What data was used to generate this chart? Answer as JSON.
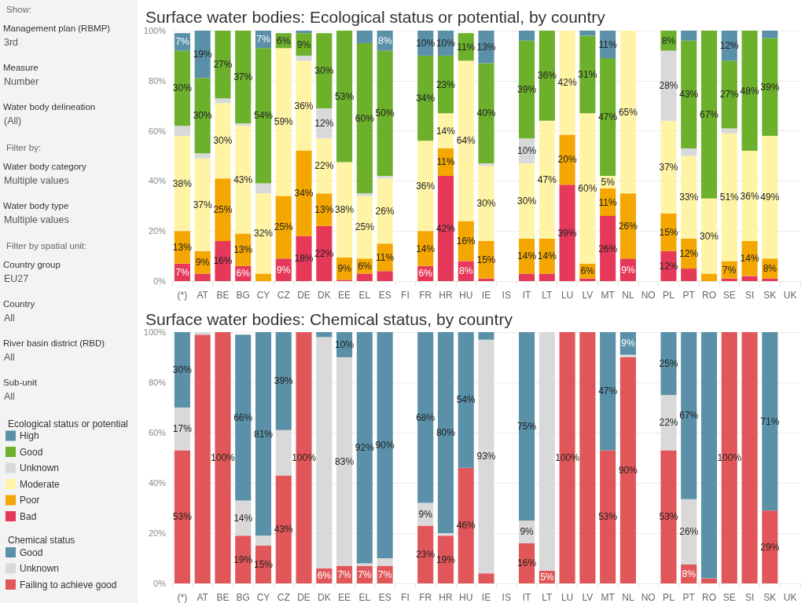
{
  "chart_data": [
    {
      "type": "other",
      "annotations": [
        "Show:",
        "Management plan (RBMP)",
        "3rd",
        "Measure",
        "Number",
        "Water body delineation",
        "(All)",
        "Filter by:",
        "Water body category",
        "Multiple values",
        "Water body type",
        "Multiple values",
        "Filter by spatial unit:",
        "Country group",
        "EU27",
        "Country",
        "All",
        "River basin district (RBD)",
        "All",
        "Sub-unit",
        "All"
      ]
    },
    {
      "type": "bar",
      "title": "Surface water bodies: Ecological status or potential, by country",
      "legend_title": "Ecological status or potential",
      "stacked": true,
      "grid": "y",
      "legend": "bottom left",
      "categories": [
        "(*)",
        "AT",
        "BE",
        "BG",
        "CY",
        "CZ",
        "DE",
        "DK",
        "EE",
        "EL",
        "ES",
        "FI",
        "FR",
        "HR",
        "HU",
        "IE",
        "IS",
        "IT",
        "LT",
        "LU",
        "LV",
        "MT",
        "NL",
        "NO",
        "PL",
        "PT",
        "RO",
        "SE",
        "SI",
        "SK",
        "UK"
      ],
      "ylim": [
        0,
        100
      ],
      "yticks": [
        {
          "value": 0,
          "label": "0%"
        },
        {
          "value": 20,
          "label": "20%"
        },
        {
          "value": 40,
          "label": "40%"
        },
        {
          "value": 60,
          "label": "60%"
        },
        {
          "value": 80,
          "label": "80%"
        },
        {
          "value": 100,
          "label": "100%"
        }
      ],
      "series": [
        {
          "name": "Bad",
          "color": "#e6395a",
          "values": [
            7,
            3,
            16,
            6,
            0,
            9,
            18,
            22,
            0.5,
            3,
            4,
            null,
            6,
            42,
            8,
            1,
            null,
            3,
            3,
            38.5,
            1,
            26,
            9,
            null,
            12,
            5,
            0,
            1,
            2,
            1,
            null
          ],
          "value_labels": [
            "7%",
            null,
            "16%",
            "6%",
            null,
            "9%",
            "18%",
            "22%",
            null,
            null,
            null,
            null,
            "6%",
            "42%",
            "8%",
            null,
            null,
            null,
            null,
            "39%",
            null,
            "26%",
            "9%",
            null,
            "12%",
            null,
            null,
            null,
            null,
            null,
            null
          ]
        },
        {
          "name": "Poor",
          "color": "#f4a700",
          "values": [
            13,
            9,
            25,
            13,
            3,
            25,
            34,
            13,
            9,
            6,
            11,
            null,
            14,
            11,
            16,
            15,
            null,
            14,
            14,
            20,
            6,
            11,
            26,
            null,
            15,
            12,
            3,
            7,
            14,
            8,
            null
          ],
          "value_labels": [
            "13%",
            "9%",
            "25%",
            "13%",
            null,
            "25%",
            "34%",
            "13%",
            "9%",
            "6%",
            "11%",
            null,
            "14%",
            "11%",
            "16%",
            "15%",
            null,
            "14%",
            "14%",
            "20%",
            "6%",
            "11%",
            "26%",
            null,
            "15%",
            "12%",
            null,
            "7%",
            "14%",
            "8%",
            null
          ]
        },
        {
          "name": "Moderate",
          "color": "#fff4a6",
          "values": [
            38,
            37,
            30,
            43,
            32,
            59,
            36,
            22,
            38,
            25,
            26,
            null,
            36,
            14,
            64,
            30,
            null,
            30,
            47,
            41.5,
            60,
            5,
            65,
            null,
            37,
            33,
            30,
            51,
            36,
            49,
            null
          ],
          "value_labels": [
            "38%",
            "37%",
            "30%",
            "43%",
            "32%",
            "59%",
            "36%",
            "22%",
            "38%",
            "25%",
            "26%",
            null,
            "36%",
            "14%",
            "64%",
            "30%",
            null,
            "30%",
            "47%",
            "42%",
            "60%",
            "5%",
            "65%",
            null,
            "37%",
            "33%",
            "30%",
            "51%",
            "36%",
            "49%",
            null
          ]
        },
        {
          "name": "Unknown",
          "color": "#d9d9d9",
          "values": [
            4,
            2,
            2,
            1,
            4,
            0,
            2,
            12,
            0,
            1,
            1,
            null,
            0,
            0,
            0,
            1,
            null,
            10,
            0,
            0,
            0,
            0,
            0,
            null,
            28,
            3,
            0,
            2,
            0,
            0,
            null
          ],
          "value_labels": [
            null,
            null,
            null,
            null,
            null,
            null,
            null,
            "12%",
            null,
            null,
            null,
            null,
            null,
            null,
            null,
            null,
            null,
            "10%",
            null,
            null,
            null,
            null,
            null,
            null,
            "28%",
            null,
            null,
            null,
            null,
            null,
            null
          ]
        },
        {
          "name": "Good",
          "color": "#6cb02c",
          "values": [
            30,
            30,
            27,
            37,
            54,
            6,
            9,
            30,
            52.5,
            60,
            50,
            null,
            34,
            23,
            11,
            40,
            null,
            39,
            36,
            0,
            31,
            47,
            0,
            null,
            8,
            43,
            67,
            27,
            48,
            39,
            null
          ],
          "value_labels": [
            "30%",
            "30%",
            "27%",
            "37%",
            "54%",
            "6%",
            "9%",
            "30%",
            "53%",
            "60%",
            "50%",
            null,
            "34%",
            "23%",
            "11%",
            "40%",
            null,
            "39%",
            "36%",
            null,
            "31%",
            "47%",
            null,
            null,
            "8%",
            "43%",
            "67%",
            "27%",
            "48%",
            "39%",
            null
          ]
        },
        {
          "name": "High",
          "color": "#5a91a8",
          "values": [
            7,
            19,
            0,
            0,
            7,
            0,
            1,
            0,
            0,
            5,
            8,
            null,
            10,
            10,
            0,
            13,
            null,
            4,
            0,
            0,
            2,
            11,
            0,
            null,
            0,
            4,
            0,
            12,
            0,
            3,
            null
          ],
          "value_labels": [
            "7%",
            "19%",
            null,
            null,
            "7%",
            null,
            null,
            null,
            null,
            null,
            "8%",
            null,
            "10%",
            "10%",
            null,
            "13%",
            null,
            null,
            null,
            null,
            null,
            "11%",
            null,
            null,
            null,
            null,
            null,
            "12%",
            null,
            null,
            null
          ]
        }
      ]
    },
    {
      "type": "bar",
      "title": "Surface water bodies: Chemical status, by country",
      "legend_title": "Chemical status",
      "stacked": true,
      "grid": "y",
      "legend": "bottom left",
      "categories": [
        "(*)",
        "AT",
        "BE",
        "BG",
        "CY",
        "CZ",
        "DE",
        "DK",
        "EE",
        "EL",
        "ES",
        "FI",
        "FR",
        "HR",
        "HU",
        "IE",
        "IS",
        "IT",
        "LT",
        "LU",
        "LV",
        "MT",
        "NL",
        "NO",
        "PL",
        "PT",
        "RO",
        "SE",
        "SI",
        "SK",
        "UK"
      ],
      "ylim": [
        0,
        100
      ],
      "yticks": [
        {
          "value": 0,
          "label": "0%"
        },
        {
          "value": 20,
          "label": "20%"
        },
        {
          "value": 40,
          "label": "40%"
        },
        {
          "value": 60,
          "label": "60%"
        },
        {
          "value": 80,
          "label": "80%"
        },
        {
          "value": 100,
          "label": "100%"
        }
      ],
      "series": [
        {
          "name": "Failing to achieve good",
          "color": "#e15759",
          "values": [
            53,
            99,
            100,
            19,
            15,
            43,
            100,
            6,
            7,
            7,
            7,
            null,
            23,
            19,
            46,
            4,
            null,
            16,
            5,
            100,
            100,
            53,
            90,
            null,
            53,
            7.5,
            2,
            100,
            100,
            29,
            null
          ],
          "value_labels": [
            "53%",
            null,
            "100%",
            "19%",
            "15%",
            "43%",
            "100%",
            "6%",
            "7%",
            "7%",
            "7%",
            null,
            "23%",
            "19%",
            "46%",
            null,
            null,
            "16%",
            "5%",
            "100%",
            null,
            "53%",
            "90%",
            null,
            "53%",
            "8%",
            null,
            "100%",
            null,
            "29%",
            null
          ]
        },
        {
          "name": "Unknown",
          "color": "#d9d9d9",
          "values": [
            17,
            1,
            0,
            14,
            4,
            18,
            0,
            92,
            83,
            1,
            3,
            null,
            9,
            1,
            0,
            93,
            null,
            9,
            95,
            0,
            0,
            0,
            1,
            null,
            22,
            26,
            0,
            0,
            0,
            0,
            null
          ],
          "value_labels": [
            "17%",
            null,
            null,
            "14%",
            null,
            null,
            null,
            null,
            "83%",
            null,
            null,
            null,
            "9%",
            null,
            null,
            "93%",
            null,
            "9%",
            null,
            null,
            null,
            null,
            null,
            null,
            "22%",
            "26%",
            null,
            null,
            null,
            null,
            null
          ]
        },
        {
          "name": "Good",
          "color": "#5a91a8",
          "values": [
            30,
            0,
            0,
            66,
            81,
            39,
            0,
            2,
            10,
            92,
            90,
            null,
            68,
            80,
            54,
            3,
            null,
            75,
            0,
            0,
            0,
            47,
            9,
            null,
            25,
            66.5,
            98,
            0,
            0,
            71,
            null
          ],
          "value_labels": [
            "30%",
            null,
            null,
            "66%",
            "81%",
            "39%",
            null,
            null,
            "10%",
            "92%",
            "90%",
            null,
            "68%",
            "80%",
            "54%",
            null,
            null,
            "75%",
            null,
            null,
            null,
            "47%",
            "9%",
            null,
            "25%",
            "67%",
            null,
            null,
            null,
            "71%",
            null
          ]
        }
      ]
    }
  ]
}
